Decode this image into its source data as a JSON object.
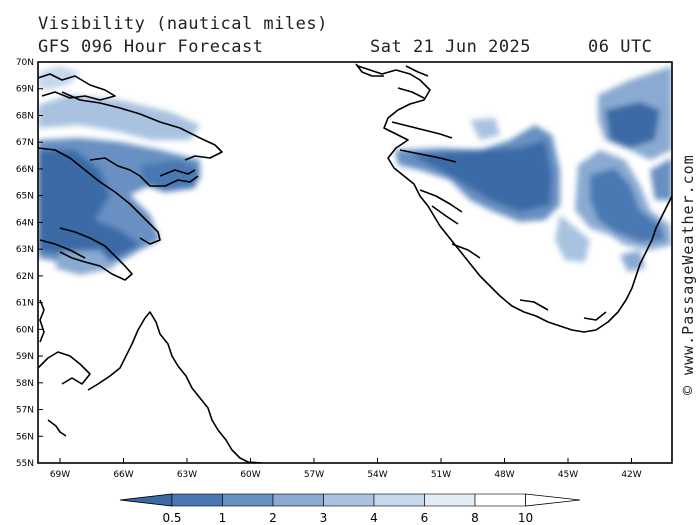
{
  "header": {
    "title": "Visibility (nautical miles)",
    "subtitle": "GFS 096 Hour Forecast",
    "date": "Sat 21 Jun 2025",
    "time": "06 UTC"
  },
  "credit": "© www.PassageWeather.com",
  "map": {
    "lat_range": [
      55,
      70
    ],
    "lon_range": [
      -70,
      -40.5
    ],
    "lat_labels": [
      "70N",
      "69N",
      "68N",
      "67N",
      "66N",
      "65N",
      "64N",
      "63N",
      "62N",
      "61N",
      "60N",
      "59N",
      "58N",
      "57N",
      "56N",
      "55N"
    ],
    "lon_labels": [
      "69W",
      "66W",
      "63W",
      "60W",
      "57W",
      "54W",
      "51W",
      "48W",
      "45W",
      "42W"
    ]
  },
  "legend": {
    "ticks": [
      "0.5",
      "1",
      "2",
      "3",
      "4",
      "6",
      "8",
      "10"
    ],
    "colors": [
      "#3a6aa6",
      "#4878b2",
      "#6890c2",
      "#8aaad2",
      "#a8c2e0",
      "#c6d8ec",
      "#e2ecf6",
      "#ffffff"
    ]
  }
}
